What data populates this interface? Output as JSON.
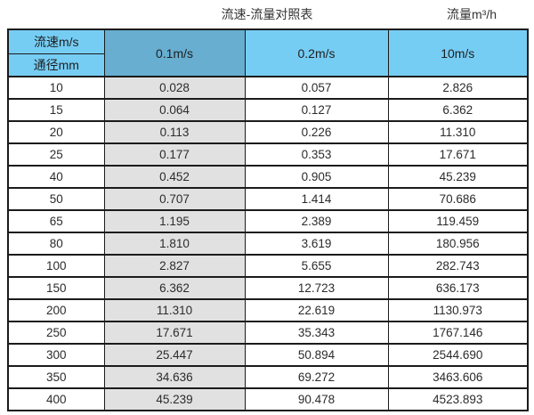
{
  "titles": {
    "main": "流速-流量对照表",
    "unit": "流量m³/h"
  },
  "table": {
    "corner": {
      "top": "流速m/s",
      "bottom": "通径mm"
    },
    "columns": [
      "0.1m/s",
      "0.2m/s",
      "10m/s"
    ],
    "highlighted_column": "0.1m/s",
    "rows": [
      [
        "10",
        "0.028",
        "0.057",
        "2.826"
      ],
      [
        "15",
        "0.064",
        "0.127",
        "6.362"
      ],
      [
        "20",
        "0.113",
        "0.226",
        "11.310"
      ],
      [
        "25",
        "0.177",
        "0.353",
        "17.671"
      ],
      [
        "40",
        "0.452",
        "0.905",
        "45.239"
      ],
      [
        "50",
        "0.707",
        "1.414",
        "70.686"
      ],
      [
        "65",
        "1.195",
        "2.389",
        "119.459"
      ],
      [
        "80",
        "1.810",
        "3.619",
        "180.956"
      ],
      [
        "100",
        "2.827",
        "5.655",
        "282.743"
      ],
      [
        "150",
        "6.362",
        "12.723",
        "636.173"
      ],
      [
        "200",
        "11.310",
        "22.619",
        "1130.973"
      ],
      [
        "250",
        "17.671",
        "35.343",
        "1767.146"
      ],
      [
        "300",
        "25.447",
        "50.894",
        "2544.690"
      ],
      [
        "350",
        "34.636",
        "69.272",
        "3463.606"
      ],
      [
        "400",
        "45.239",
        "90.478",
        "4523.893"
      ]
    ]
  },
  "colors": {
    "header_cyan": "#76CDF4",
    "header_highlight_blue": "#67AED1",
    "column_highlight_gray": "#E1E1E1",
    "grid_border": "#1b1b1b"
  }
}
